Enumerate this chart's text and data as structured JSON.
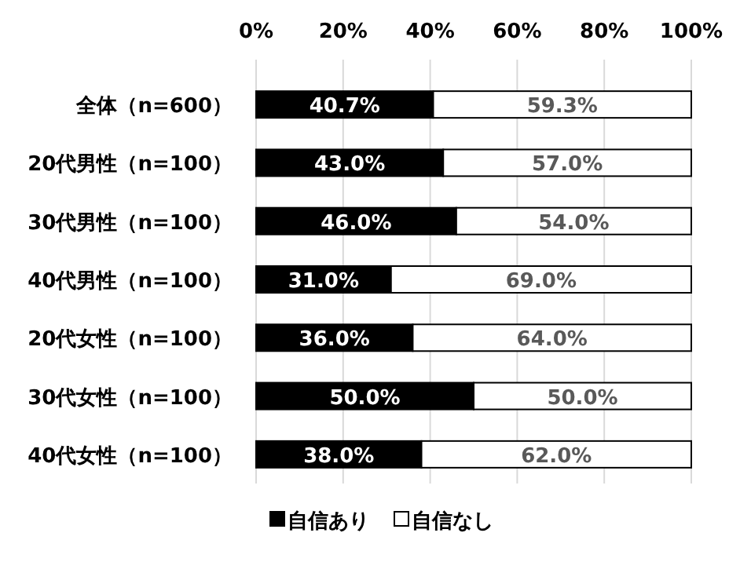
{
  "chart_data": {
    "type": "bar",
    "orientation": "horizontal",
    "stacked": true,
    "categories": [
      "全体（n=600）",
      "20代男性（n=100）",
      "30代男性（n=100）",
      "40代男性（n=100）",
      "20代女性（n=100）",
      "30代女性（n=100）",
      "40代女性（n=100）"
    ],
    "series": [
      {
        "name": "自信あり",
        "color": "#000000",
        "values": [
          40.7,
          43.0,
          46.0,
          31.0,
          36.0,
          50.0,
          38.0
        ],
        "value_labels": [
          "40.7%",
          "43.0%",
          "46.0%",
          "31.0%",
          "36.0%",
          "50.0%",
          "38.0%"
        ]
      },
      {
        "name": "自信なし",
        "color": "#ffffff",
        "values": [
          59.3,
          57.0,
          54.0,
          69.0,
          64.0,
          50.0,
          62.0
        ],
        "value_labels": [
          "59.3%",
          "57.0%",
          "54.0%",
          "69.0%",
          "64.0%",
          "50.0%",
          "62.0%"
        ]
      }
    ],
    "xlim": [
      0,
      100
    ],
    "xticks": [
      {
        "value": 0,
        "label": "0%"
      },
      {
        "value": 20,
        "label": "20%"
      },
      {
        "value": 40,
        "label": "40%"
      },
      {
        "value": 60,
        "label": "60%"
      },
      {
        "value": 80,
        "label": "80%"
      },
      {
        "value": 100,
        "label": "100%"
      }
    ],
    "grid": "x",
    "legend": "bottom"
  }
}
